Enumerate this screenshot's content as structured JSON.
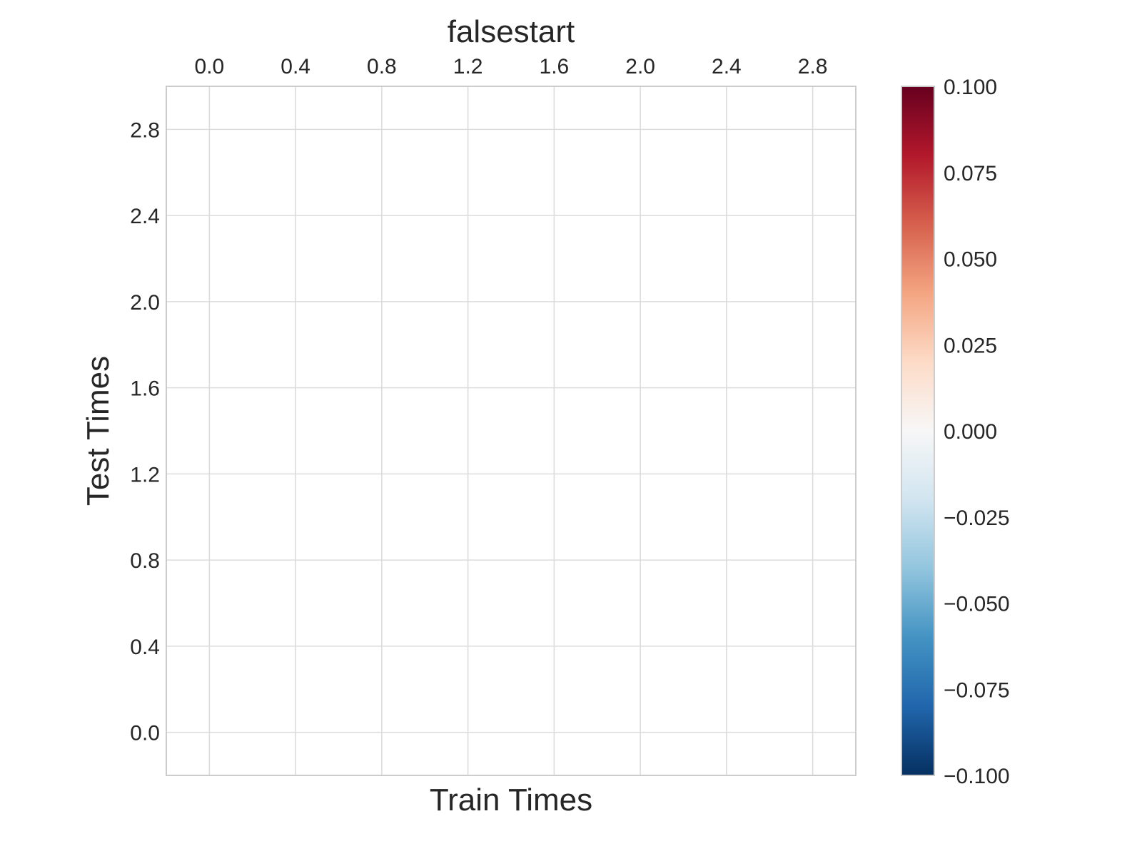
{
  "chart_data": {
    "type": "heatmap",
    "title": "falsestart",
    "xlabel": "Train Times",
    "ylabel": "Test Times",
    "x_axis_position": "top",
    "xlim": [
      -0.2,
      3.0
    ],
    "ylim": [
      -0.2,
      3.0
    ],
    "x_ticks": [
      0.0,
      0.4,
      0.8,
      1.2,
      1.6,
      2.0,
      2.4,
      2.8
    ],
    "x_tick_labels": [
      "0.0",
      "0.4",
      "0.8",
      "1.2",
      "1.6",
      "2.0",
      "2.4",
      "2.8"
    ],
    "y_ticks": [
      0.0,
      0.4,
      0.8,
      1.2,
      1.6,
      2.0,
      2.4,
      2.8
    ],
    "y_tick_labels": [
      "0.0",
      "0.4",
      "0.8",
      "1.2",
      "1.6",
      "2.0",
      "2.4",
      "2.8"
    ],
    "grid": true,
    "values": [],
    "colorbar": {
      "colormap": "RdBu_r",
      "range": [
        -0.1,
        0.1
      ],
      "ticks": [
        0.1,
        0.075,
        0.05,
        0.025,
        0.0,
        -0.025,
        -0.05,
        -0.075,
        -0.1
      ],
      "tick_labels": [
        "0.100",
        "0.075",
        "0.050",
        "0.025",
        "0.000",
        "−0.025",
        "−0.050",
        "−0.075",
        "−0.100"
      ],
      "gradient_stops": [
        {
          "offset": 0.0,
          "color": "#67001f"
        },
        {
          "offset": 0.1,
          "color": "#b2182b"
        },
        {
          "offset": 0.2,
          "color": "#d6604d"
        },
        {
          "offset": 0.3,
          "color": "#f4a582"
        },
        {
          "offset": 0.4,
          "color": "#fddbc7"
        },
        {
          "offset": 0.5,
          "color": "#f7f7f7"
        },
        {
          "offset": 0.6,
          "color": "#d1e5f0"
        },
        {
          "offset": 0.7,
          "color": "#92c5de"
        },
        {
          "offset": 0.8,
          "color": "#4393c3"
        },
        {
          "offset": 0.9,
          "color": "#2166ac"
        },
        {
          "offset": 1.0,
          "color": "#053061"
        }
      ]
    },
    "colors": {
      "grid": "#dcdcdc",
      "frame": "#cccccc",
      "text": "#262626"
    }
  }
}
